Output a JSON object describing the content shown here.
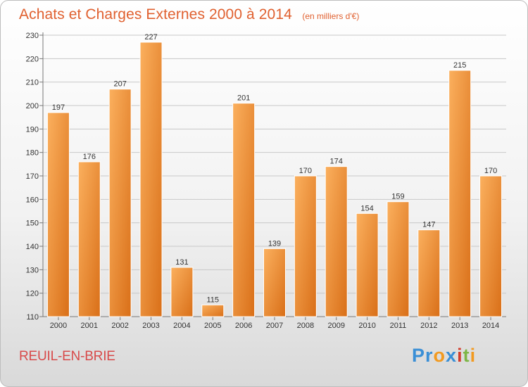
{
  "header": {
    "title": "Achats et Charges Externes 2000 à 2014",
    "subtitle": "(en milliers d'€)"
  },
  "footer": {
    "city": "REUIL-EN-BRIE",
    "logo_text": "Proxiti",
    "logo_letters": [
      "Pr",
      "o",
      "x",
      "i",
      "t",
      "i"
    ]
  },
  "colors": {
    "bar_light": "#fbb05e",
    "bar_dark": "#d96f18",
    "title": "#e0602f",
    "city": "#d84a4a"
  },
  "chart_data": {
    "type": "bar",
    "title": "Achats et Charges Externes 2000 à 2014",
    "subtitle": "(en milliers d'€)",
    "xlabel": "",
    "ylabel": "",
    "categories": [
      "2000",
      "2001",
      "2002",
      "2003",
      "2004",
      "2005",
      "2006",
      "2007",
      "2008",
      "2009",
      "2010",
      "2011",
      "2012",
      "2013",
      "2014"
    ],
    "values": [
      197,
      176,
      207,
      227,
      131,
      115,
      201,
      139,
      170,
      174,
      154,
      159,
      147,
      215,
      170
    ],
    "ylim": [
      110,
      230
    ],
    "yticks": [
      110,
      120,
      130,
      140,
      150,
      160,
      170,
      180,
      190,
      200,
      210,
      220,
      230
    ],
    "grid": true,
    "data_labels": true
  }
}
